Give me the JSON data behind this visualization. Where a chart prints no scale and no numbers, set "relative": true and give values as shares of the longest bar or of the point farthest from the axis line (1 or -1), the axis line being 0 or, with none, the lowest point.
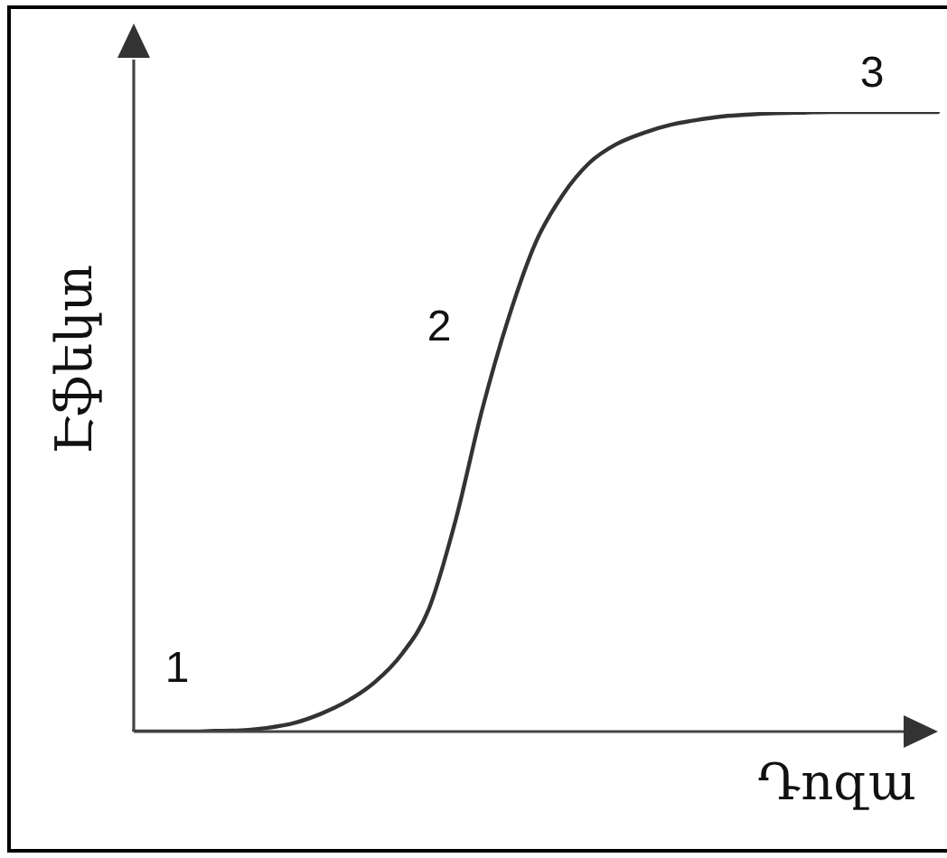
{
  "chart_data": {
    "type": "line",
    "xlabel": "Դոզա",
    "ylabel": "Էֆեկտ",
    "relative": true,
    "categories": [
      null,
      null,
      null,
      null,
      null,
      null,
      null,
      null,
      null,
      null,
      null,
      null,
      null,
      null,
      null,
      null,
      null,
      null,
      null,
      null,
      null,
      null,
      null,
      null,
      null,
      null,
      null,
      null,
      null,
      null,
      null
    ],
    "values": [
      0,
      0,
      0,
      0.001,
      0.002,
      0.006,
      0.014,
      0.029,
      0.05,
      0.08,
      0.125,
      0.197,
      0.34,
      0.52,
      0.67,
      0.79,
      0.866,
      0.918,
      0.948,
      0.966,
      0.979,
      0.987,
      0.993,
      0.996,
      0.998,
      0.999,
      1,
      1,
      1,
      1,
      1
    ],
    "color": "#333333",
    "annotations": [
      "1",
      "2",
      "3"
    ]
  }
}
